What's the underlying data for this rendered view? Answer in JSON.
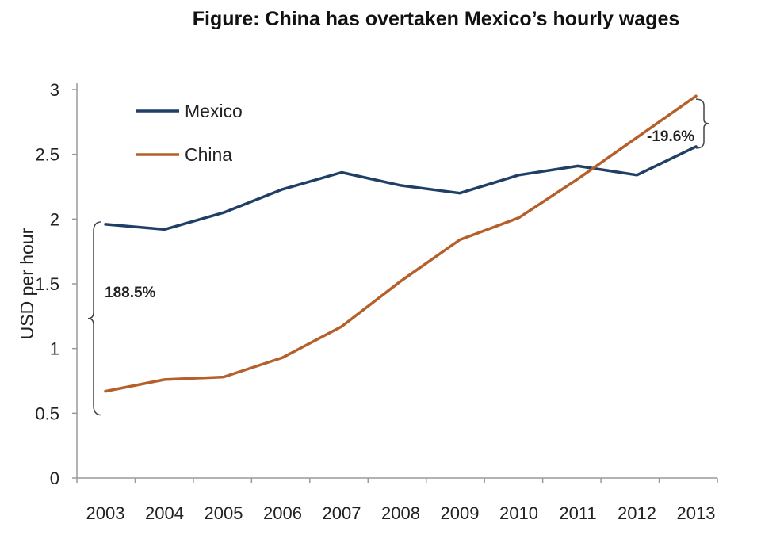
{
  "chart_data": {
    "type": "line",
    "title": "Figure: China has overtaken Mexico’s hourly wages",
    "ylabel": "USD per hour",
    "xlabel": "",
    "categories": [
      "2003",
      "2004",
      "2005",
      "2006",
      "2007",
      "2008",
      "2009",
      "2010",
      "2011",
      "2012",
      "2013"
    ],
    "yticks": [
      "0",
      "0.5",
      "1",
      "1.5",
      "2",
      "2.5",
      "3"
    ],
    "ylim": [
      0,
      3
    ],
    "series": [
      {
        "name": "Mexico",
        "color": "#1f3f66",
        "values": [
          1.96,
          1.92,
          2.05,
          2.23,
          2.36,
          2.26,
          2.2,
          2.34,
          2.41,
          2.34,
          2.56
        ]
      },
      {
        "name": "China",
        "color": "#b5602b",
        "values": [
          0.67,
          0.76,
          0.78,
          0.93,
          1.17,
          1.52,
          1.84,
          2.01,
          2.31,
          2.63,
          2.95
        ]
      }
    ],
    "annotations": [
      {
        "text": "188.5%",
        "year": "2003"
      },
      {
        "text": "-19.6%",
        "year": "2013"
      }
    ],
    "grid": false,
    "legend_position": "top-left"
  }
}
